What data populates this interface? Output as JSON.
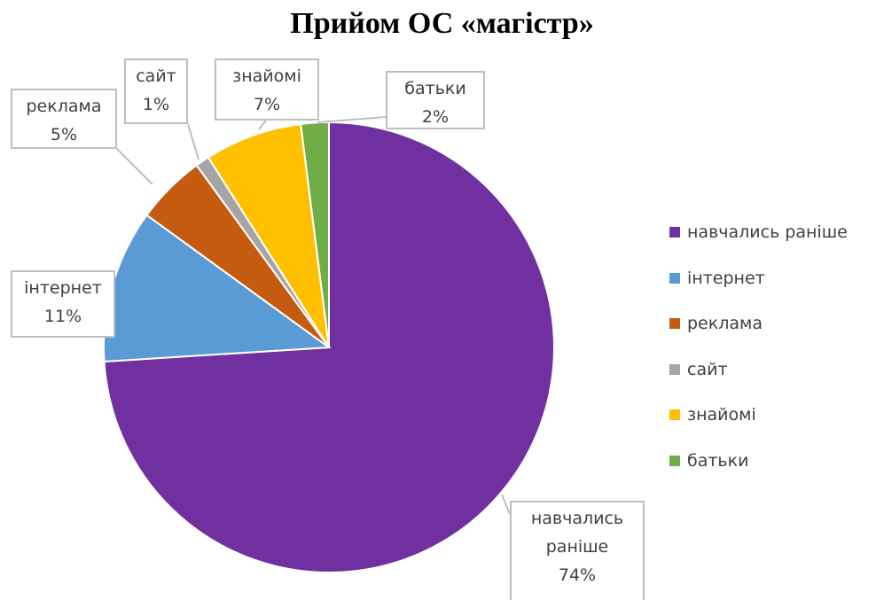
{
  "chart_data": {
    "type": "pie",
    "title": "Прийом ОС «магістр»",
    "categories": [
      "навчались раніше",
      "інтернет",
      "реклама",
      "сайт",
      "знайомі",
      "батьки"
    ],
    "values": [
      74,
      11,
      5,
      1,
      7,
      2
    ],
    "value_labels": [
      "74%",
      "11%",
      "5%",
      "1%",
      "7%",
      "2%"
    ],
    "colors": [
      "#7030a0",
      "#5b9bd5",
      "#c55a11",
      "#a5a5a5",
      "#ffc000",
      "#70ad47"
    ],
    "legend": "right"
  }
}
